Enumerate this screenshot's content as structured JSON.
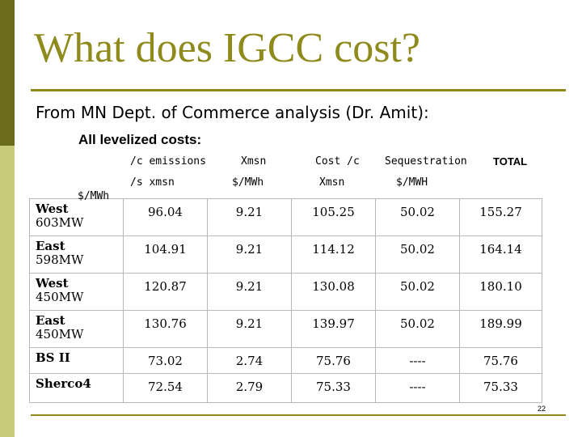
{
  "title": "What does IGCC cost?",
  "subtitle": "From MN Dept. of Commerce analysis (Dr. Amit):",
  "section_heading": "All levelized costs:",
  "columns": [
    {
      "line1": "/c emissions",
      "line2": "/s xmsn"
    },
    {
      "line1": "Xmsn",
      "line2": "$/MWh"
    },
    {
      "line1": "Cost /c",
      "line2": "Xmsn"
    },
    {
      "line1": "Sequestration",
      "line2": "$/MWH"
    },
    {
      "line1": "TOTAL",
      "line2": ""
    }
  ],
  "unit_label": "$/MWh",
  "rows": [
    {
      "label": "West\n603MW",
      "values": [
        "96.04",
        "9.21",
        "105.25",
        "50.02",
        "155.27"
      ]
    },
    {
      "label": "East\n598MW",
      "values": [
        "104.91",
        "9.21",
        "114.12",
        "50.02",
        "164.14"
      ]
    },
    {
      "label": "West\n450MW",
      "values": [
        "120.87",
        "9.21",
        "130.08",
        "50.02",
        "180.10"
      ]
    },
    {
      "label": "East\n450MW",
      "values": [
        "130.76",
        "9.21",
        "139.97",
        "50.02",
        "189.99"
      ]
    },
    {
      "label": "BS II",
      "values": [
        "73.02",
        "2.74",
        "75.76",
        "----",
        "75.76"
      ]
    },
    {
      "label": "Sherco4",
      "values": [
        "72.54",
        "2.79",
        "75.33",
        "----",
        "75.33"
      ]
    }
  ],
  "page_number": "22"
}
